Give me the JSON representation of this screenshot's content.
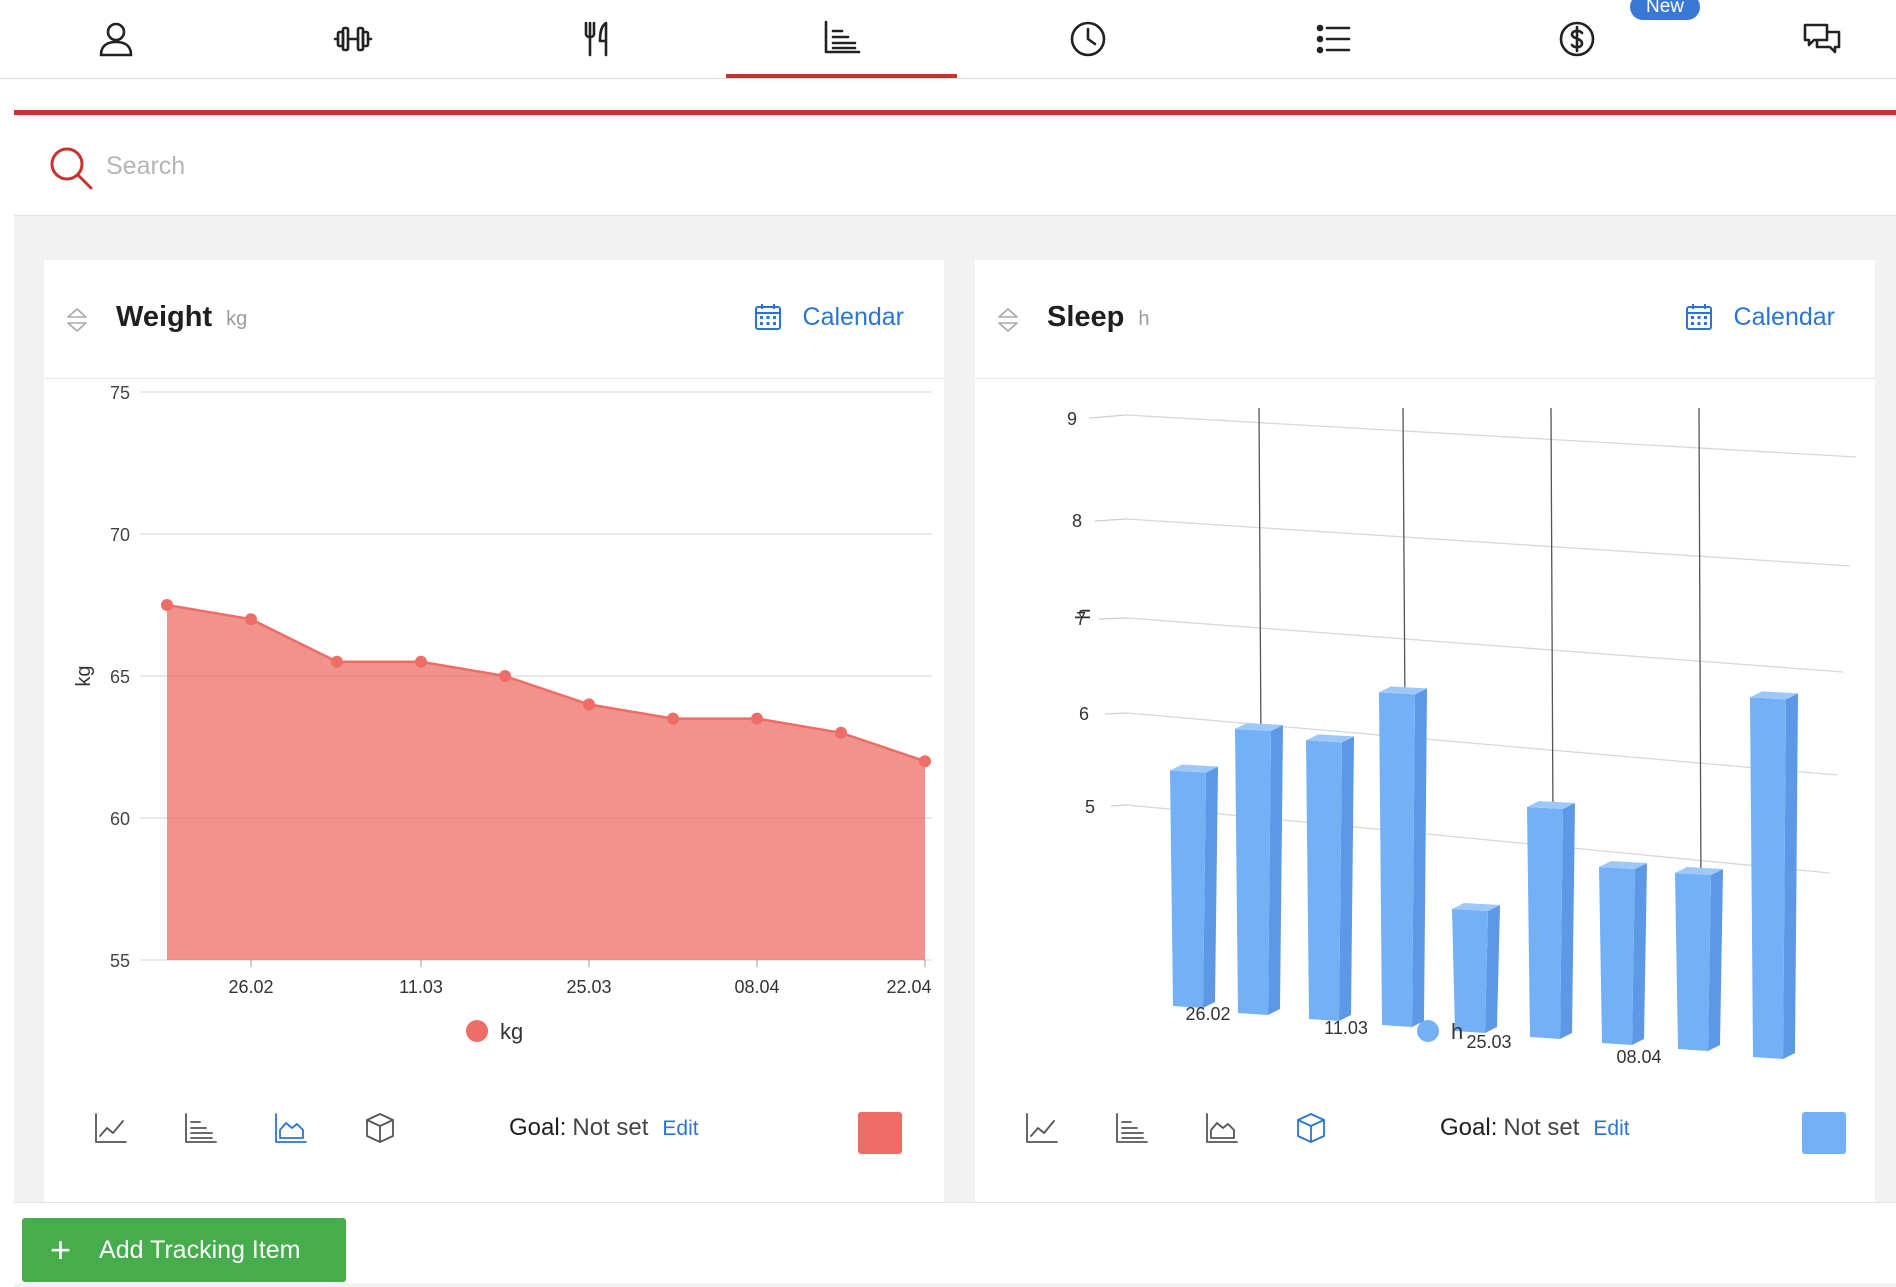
{
  "nav": {
    "tabs": [
      {
        "icon": "user-icon",
        "active": false
      },
      {
        "icon": "dumbbell-icon",
        "active": false
      },
      {
        "icon": "fork-knife-icon",
        "active": false
      },
      {
        "icon": "bar-chart-icon",
        "active": true
      },
      {
        "icon": "clock-icon",
        "active": false
      },
      {
        "icon": "list-icon",
        "active": false
      },
      {
        "icon": "dollar-icon",
        "active": false
      },
      {
        "icon": "chat-icon",
        "active": false
      }
    ],
    "new_badge": "New",
    "accent_color": "#c8332f"
  },
  "search": {
    "placeholder": "Search"
  },
  "cards": [
    {
      "title": "Weight",
      "unit": "kg",
      "calendar_label": "Calendar",
      "goal_label": "Goal:",
      "goal_value": "Not set",
      "edit_label": "Edit",
      "color": "#ee6d67",
      "active_chart_type": "area"
    },
    {
      "title": "Sleep",
      "unit": "h",
      "calendar_label": "Calendar",
      "goal_label": "Goal:",
      "goal_value": "Not set",
      "edit_label": "Edit",
      "color": "#74b0f5",
      "active_chart_type": "bar-3d"
    }
  ],
  "add_button": {
    "label": "Add Tracking Item"
  },
  "chart_data": [
    {
      "type": "area",
      "title": "",
      "ylabel": "kg",
      "xlabel": "",
      "ylim": [
        55,
        75
      ],
      "yticks": [
        55,
        60,
        65,
        70,
        75
      ],
      "x_tick_labels": [
        "26.02",
        "11.03",
        "25.03",
        "08.04",
        "22.04"
      ],
      "series": [
        {
          "name": "kg",
          "values": [
            67.5,
            67.0,
            65.5,
            65.5,
            65.0,
            64.0,
            63.5,
            63.5,
            63.0,
            62.0
          ]
        }
      ],
      "legend": "bottom-center",
      "grid": true,
      "color": "#ee6d67"
    },
    {
      "type": "bar",
      "title": "",
      "ylabel": "h",
      "xlabel": "",
      "ylim": [
        5,
        9
      ],
      "yticks": [
        5,
        6,
        7,
        8,
        9
      ],
      "x_tick_labels": [
        "26.02",
        "11.03",
        "25.03",
        "08.04"
      ],
      "series": [
        {
          "name": "h",
          "values": [
            7.0,
            7.45,
            7.4,
            7.9,
            5.95,
            6.95,
            6.45,
            6.45,
            8.15
          ]
        }
      ],
      "legend": "bottom-center",
      "grid": true,
      "three_d": true,
      "color": "#74b0f5"
    }
  ]
}
